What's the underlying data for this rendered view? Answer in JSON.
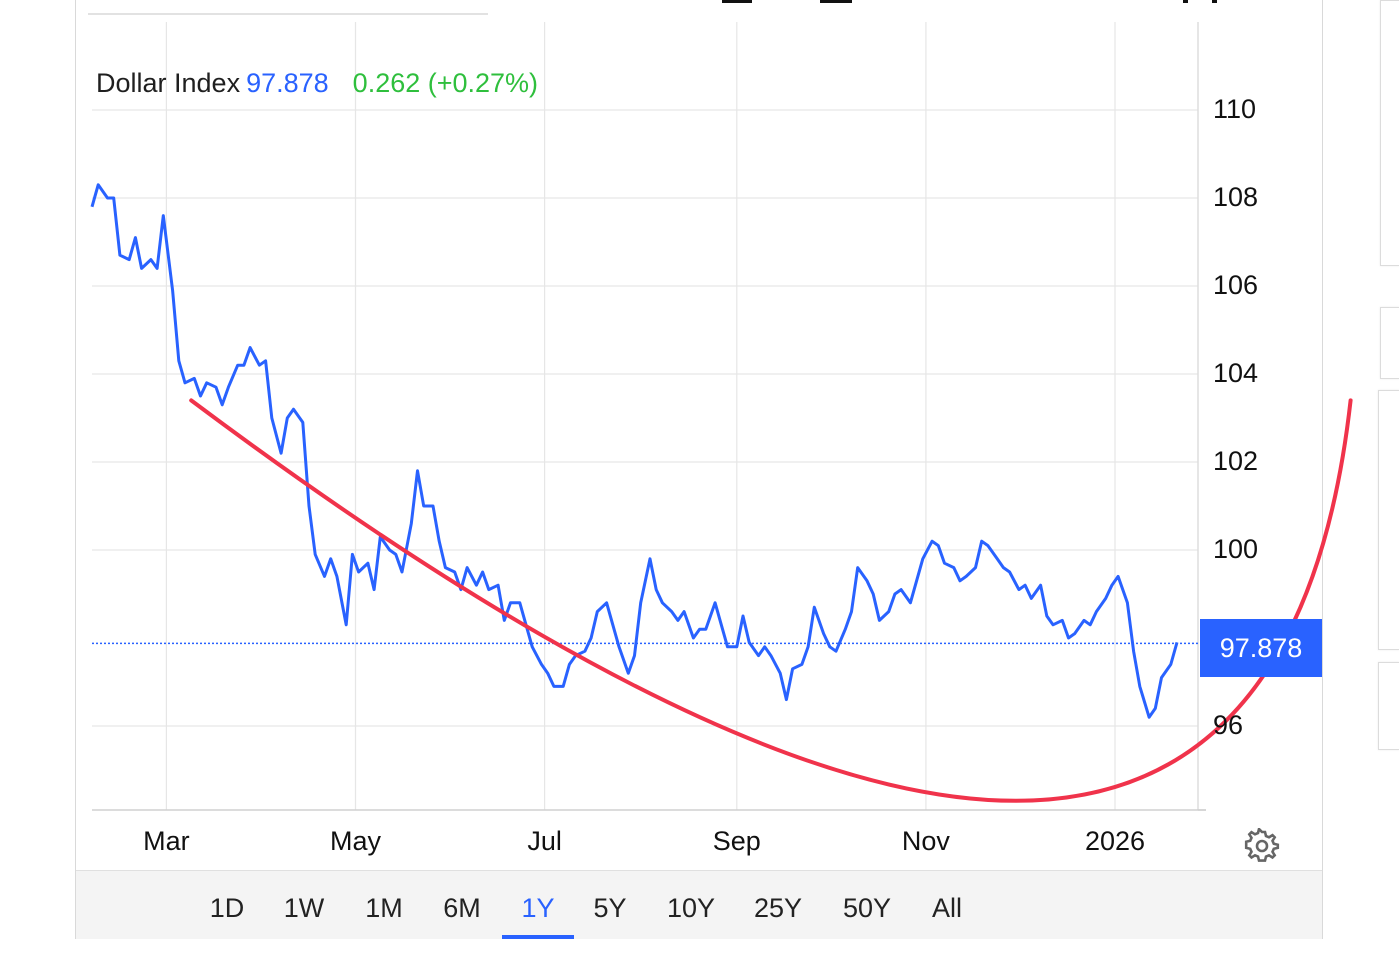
{
  "quote": {
    "name": "Dollar Index",
    "price": "97.878",
    "change": "0.262 (+0.27%)"
  },
  "price_tag": "97.878",
  "ranges": [
    "1D",
    "1W",
    "1M",
    "6M",
    "1Y",
    "5Y",
    "10Y",
    "25Y",
    "50Y",
    "All"
  ],
  "active_range": "1Y",
  "settings_icon": "gear-icon",
  "colors": {
    "line": "#2962ff",
    "change_positive": "#2fbf3d",
    "annotation": "#f0334b",
    "grid": "#e6e6e6"
  },
  "chart_data": {
    "type": "line",
    "title": "Dollar Index",
    "y_ticks": [
      "110",
      "108",
      "106",
      "104",
      "102",
      "100",
      "96"
    ],
    "x_ticks": [
      "Mar",
      "May",
      "Jul",
      "Sep",
      "Nov",
      "2026"
    ],
    "ylim": [
      94,
      112
    ],
    "last_value": 97.878,
    "grid": true,
    "series": [
      {
        "name": "Dollar Index",
        "points": [
          [
            "2025-02-05",
            107.8
          ],
          [
            "2025-02-07",
            108.3
          ],
          [
            "2025-02-10",
            108.0
          ],
          [
            "2025-02-12",
            108.0
          ],
          [
            "2025-02-14",
            106.7
          ],
          [
            "2025-02-17",
            106.6
          ],
          [
            "2025-02-19",
            107.1
          ],
          [
            "2025-02-21",
            106.4
          ],
          [
            "2025-02-24",
            106.6
          ],
          [
            "2025-02-26",
            106.4
          ],
          [
            "2025-02-28",
            107.6
          ],
          [
            "2025-03-03",
            105.9
          ],
          [
            "2025-03-05",
            104.3
          ],
          [
            "2025-03-07",
            103.8
          ],
          [
            "2025-03-10",
            103.9
          ],
          [
            "2025-03-12",
            103.5
          ],
          [
            "2025-03-14",
            103.8
          ],
          [
            "2025-03-17",
            103.7
          ],
          [
            "2025-03-19",
            103.3
          ],
          [
            "2025-03-21",
            103.7
          ],
          [
            "2025-03-24",
            104.2
          ],
          [
            "2025-03-26",
            104.2
          ],
          [
            "2025-03-28",
            104.6
          ],
          [
            "2025-03-31",
            104.2
          ],
          [
            "2025-04-02",
            104.3
          ],
          [
            "2025-04-04",
            103.0
          ],
          [
            "2025-04-07",
            102.2
          ],
          [
            "2025-04-09",
            103.0
          ],
          [
            "2025-04-11",
            103.2
          ],
          [
            "2025-04-14",
            102.9
          ],
          [
            "2025-04-16",
            101.0
          ],
          [
            "2025-04-18",
            99.9
          ],
          [
            "2025-04-21",
            99.4
          ],
          [
            "2025-04-23",
            99.8
          ],
          [
            "2025-04-25",
            99.4
          ],
          [
            "2025-04-28",
            98.3
          ],
          [
            "2025-04-30",
            99.9
          ],
          [
            "2025-05-02",
            99.5
          ],
          [
            "2025-05-05",
            99.7
          ],
          [
            "2025-05-07",
            99.1
          ],
          [
            "2025-05-09",
            100.3
          ],
          [
            "2025-05-12",
            100.0
          ],
          [
            "2025-05-14",
            99.9
          ],
          [
            "2025-05-16",
            99.5
          ],
          [
            "2025-05-19",
            100.6
          ],
          [
            "2025-05-21",
            101.8
          ],
          [
            "2025-05-23",
            101.0
          ],
          [
            "2025-05-26",
            101.0
          ],
          [
            "2025-05-28",
            100.2
          ],
          [
            "2025-05-30",
            99.6
          ],
          [
            "2025-06-02",
            99.5
          ],
          [
            "2025-06-04",
            99.1
          ],
          [
            "2025-06-06",
            99.6
          ],
          [
            "2025-06-09",
            99.2
          ],
          [
            "2025-06-11",
            99.5
          ],
          [
            "2025-06-13",
            99.1
          ],
          [
            "2025-06-16",
            99.2
          ],
          [
            "2025-06-18",
            98.4
          ],
          [
            "2025-06-20",
            98.8
          ],
          [
            "2025-06-23",
            98.8
          ],
          [
            "2025-06-25",
            98.3
          ],
          [
            "2025-06-27",
            97.8
          ],
          [
            "2025-06-30",
            97.4
          ],
          [
            "2025-07-02",
            97.2
          ],
          [
            "2025-07-04",
            96.9
          ],
          [
            "2025-07-07",
            96.9
          ],
          [
            "2025-07-09",
            97.4
          ],
          [
            "2025-07-11",
            97.6
          ],
          [
            "2025-07-14",
            97.7
          ],
          [
            "2025-07-16",
            98.0
          ],
          [
            "2025-07-18",
            98.6
          ],
          [
            "2025-07-21",
            98.8
          ],
          [
            "2025-07-23",
            98.3
          ],
          [
            "2025-07-25",
            97.8
          ],
          [
            "2025-07-28",
            97.2
          ],
          [
            "2025-07-30",
            97.6
          ],
          [
            "2025-08-01",
            98.8
          ],
          [
            "2025-08-04",
            99.8
          ],
          [
            "2025-08-06",
            99.1
          ],
          [
            "2025-08-08",
            98.8
          ],
          [
            "2025-08-11",
            98.6
          ],
          [
            "2025-08-13",
            98.4
          ],
          [
            "2025-08-15",
            98.6
          ],
          [
            "2025-08-18",
            98.0
          ],
          [
            "2025-08-20",
            98.2
          ],
          [
            "2025-08-22",
            98.2
          ],
          [
            "2025-08-25",
            98.8
          ],
          [
            "2025-08-27",
            98.3
          ],
          [
            "2025-08-29",
            97.8
          ],
          [
            "2025-09-01",
            97.8
          ],
          [
            "2025-09-03",
            98.5
          ],
          [
            "2025-09-05",
            97.9
          ],
          [
            "2025-09-08",
            97.6
          ],
          [
            "2025-09-10",
            97.8
          ],
          [
            "2025-09-12",
            97.6
          ],
          [
            "2025-09-15",
            97.2
          ],
          [
            "2025-09-17",
            96.6
          ],
          [
            "2025-09-19",
            97.3
          ],
          [
            "2025-09-22",
            97.4
          ],
          [
            "2025-09-24",
            97.8
          ],
          [
            "2025-09-26",
            98.7
          ],
          [
            "2025-09-29",
            98.1
          ],
          [
            "2025-10-01",
            97.8
          ],
          [
            "2025-10-03",
            97.7
          ],
          [
            "2025-10-06",
            98.2
          ],
          [
            "2025-10-08",
            98.6
          ],
          [
            "2025-10-10",
            99.6
          ],
          [
            "2025-10-13",
            99.3
          ],
          [
            "2025-10-15",
            99.0
          ],
          [
            "2025-10-17",
            98.4
          ],
          [
            "2025-10-20",
            98.6
          ],
          [
            "2025-10-22",
            99.0
          ],
          [
            "2025-10-24",
            99.1
          ],
          [
            "2025-10-27",
            98.8
          ],
          [
            "2025-10-29",
            99.3
          ],
          [
            "2025-10-31",
            99.8
          ],
          [
            "2025-11-03",
            100.2
          ],
          [
            "2025-11-05",
            100.1
          ],
          [
            "2025-11-07",
            99.7
          ],
          [
            "2025-11-10",
            99.6
          ],
          [
            "2025-11-12",
            99.3
          ],
          [
            "2025-11-14",
            99.4
          ],
          [
            "2025-11-17",
            99.6
          ],
          [
            "2025-11-19",
            100.2
          ],
          [
            "2025-11-21",
            100.1
          ],
          [
            "2025-11-24",
            99.8
          ],
          [
            "2025-11-26",
            99.6
          ],
          [
            "2025-11-28",
            99.5
          ],
          [
            "2025-12-01",
            99.1
          ],
          [
            "2025-12-03",
            99.2
          ],
          [
            "2025-12-05",
            98.9
          ],
          [
            "2025-12-08",
            99.2
          ],
          [
            "2025-12-10",
            98.5
          ],
          [
            "2025-12-12",
            98.3
          ],
          [
            "2025-12-15",
            98.4
          ],
          [
            "2025-12-17",
            98.0
          ],
          [
            "2025-12-19",
            98.1
          ],
          [
            "2025-12-22",
            98.4
          ],
          [
            "2025-12-24",
            98.3
          ],
          [
            "2025-12-26",
            98.6
          ],
          [
            "2025-12-29",
            98.9
          ],
          [
            "2025-12-31",
            99.2
          ],
          [
            "2026-01-02",
            99.4
          ],
          [
            "2026-01-05",
            98.8
          ],
          [
            "2026-01-07",
            97.7
          ],
          [
            "2026-01-09",
            96.9
          ],
          [
            "2026-01-12",
            96.2
          ],
          [
            "2026-01-14",
            96.4
          ],
          [
            "2026-01-16",
            97.1
          ],
          [
            "2026-01-19",
            97.4
          ],
          [
            "2026-01-21",
            97.9
          ]
        ]
      }
    ],
    "annotation": {
      "shape": "curve",
      "points": [
        [
          "2025-03-09",
          103.4
        ],
        [
          "2025-11-30",
          94.3
        ],
        [
          "2026-03-18",
          103.4
        ]
      ]
    }
  }
}
